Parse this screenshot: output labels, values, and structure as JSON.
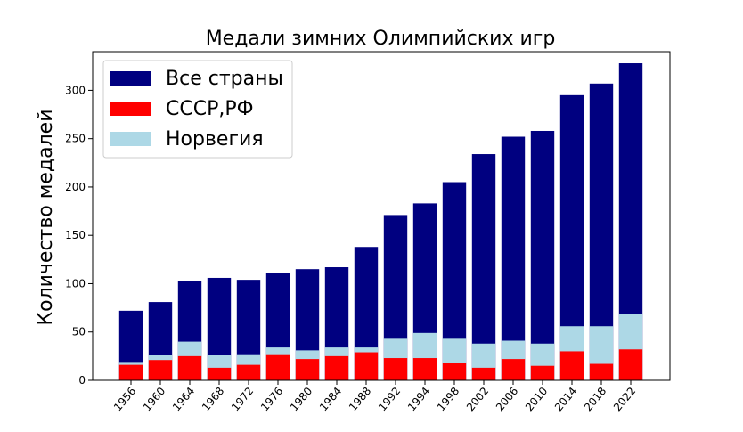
{
  "chart_data": {
    "type": "bar",
    "title": "Медали зимних Олимпийских игр",
    "xlabel": "",
    "ylabel": "Количество медалей",
    "categories": [
      "1956",
      "1960",
      "1964",
      "1968",
      "1972",
      "1976",
      "1980",
      "1984",
      "1988",
      "1992",
      "1994",
      "1998",
      "2002",
      "2006",
      "2010",
      "2014",
      "2018",
      "2022"
    ],
    "ylim": [
      0,
      340
    ],
    "yticks": [
      0,
      50,
      100,
      150,
      200,
      250,
      300
    ],
    "grid": false,
    "legend_position": "top-left",
    "overlap": true,
    "series": [
      {
        "name": "Все страны",
        "color": "#000080",
        "values": [
          72,
          81,
          103,
          106,
          104,
          111,
          115,
          117,
          138,
          171,
          183,
          205,
          234,
          252,
          258,
          295,
          307,
          328
        ]
      },
      {
        "name": "Норвегия",
        "color": "#add8e6",
        "values": [
          19,
          26,
          40,
          26,
          27,
          34,
          31,
          34,
          34,
          43,
          49,
          43,
          38,
          41,
          38,
          56,
          56,
          69
        ]
      },
      {
        "name": "СССР,РФ",
        "color": "#ff0000",
        "values": [
          16,
          21,
          25,
          13,
          16,
          27,
          22,
          25,
          29,
          23,
          23,
          18,
          13,
          22,
          15,
          30,
          17,
          32
        ]
      }
    ],
    "legend_order": [
      "Все страны",
      "СССР,РФ",
      "Норвегия"
    ]
  }
}
